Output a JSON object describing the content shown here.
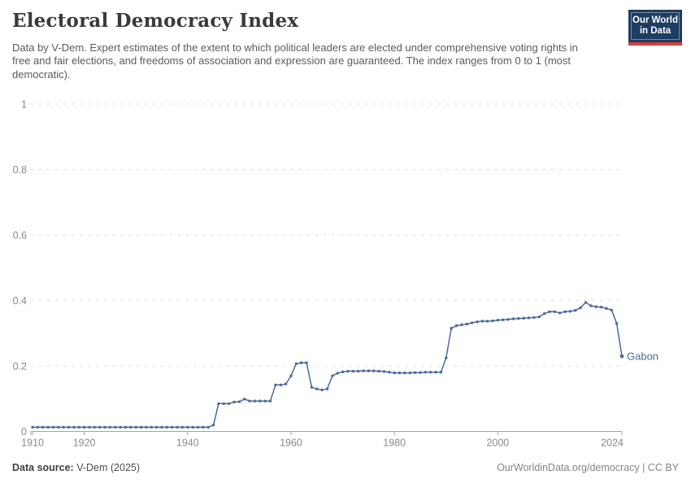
{
  "header": {
    "title": "Electoral Democracy Index",
    "subtitle": "Data by V-Dem. Expert estimates of the extent to which political leaders are elected under comprehensive voting rights in free and fair elections, and freedoms of association and expression are guaranteed. The index ranges from 0 to 1 (most democratic)."
  },
  "logo": {
    "line1": "Our World",
    "line2": "in Data",
    "bg_color": "#1d3d63",
    "bar_color": "#dc3c34"
  },
  "footer": {
    "data_source_label": "Data source:",
    "data_source_value": "V-Dem (2025)",
    "attribution": "OurWorldinData.org/democracy | CC BY"
  },
  "chart_data": {
    "type": "line",
    "title": "Electoral Democracy Index",
    "xlabel": "",
    "ylabel": "",
    "xlim": [
      1910,
      2024
    ],
    "ylim": [
      0,
      1
    ],
    "grid": true,
    "x_ticks": [
      1910,
      1920,
      1940,
      1960,
      1980,
      2000,
      2024
    ],
    "y_ticks": [
      {
        "v": 0,
        "label": "0"
      },
      {
        "v": 0.2,
        "label": "0.2"
      },
      {
        "v": 0.4,
        "label": "0.4"
      },
      {
        "v": 0.6,
        "label": "0.6"
      },
      {
        "v": 0.8,
        "label": "0.8"
      },
      {
        "v": 1,
        "label": "1"
      }
    ],
    "colors": {
      "line": "#4C6A9C",
      "grid": "#e0e0e0",
      "axis": "#a3a3a3",
      "tick_text": "#8a8a8a"
    },
    "legend": "entity label at end of line",
    "series": [
      {
        "name": "Gabon",
        "points": [
          [
            1910,
            0.013
          ],
          [
            1911,
            0.013
          ],
          [
            1912,
            0.013
          ],
          [
            1913,
            0.013
          ],
          [
            1914,
            0.013
          ],
          [
            1915,
            0.013
          ],
          [
            1916,
            0.013
          ],
          [
            1917,
            0.013
          ],
          [
            1918,
            0.013
          ],
          [
            1919,
            0.013
          ],
          [
            1920,
            0.013
          ],
          [
            1921,
            0.013
          ],
          [
            1922,
            0.013
          ],
          [
            1923,
            0.013
          ],
          [
            1924,
            0.013
          ],
          [
            1925,
            0.013
          ],
          [
            1926,
            0.013
          ],
          [
            1927,
            0.013
          ],
          [
            1928,
            0.013
          ],
          [
            1929,
            0.013
          ],
          [
            1930,
            0.013
          ],
          [
            1931,
            0.013
          ],
          [
            1932,
            0.013
          ],
          [
            1933,
            0.013
          ],
          [
            1934,
            0.013
          ],
          [
            1935,
            0.013
          ],
          [
            1936,
            0.013
          ],
          [
            1937,
            0.013
          ],
          [
            1938,
            0.013
          ],
          [
            1939,
            0.013
          ],
          [
            1940,
            0.013
          ],
          [
            1941,
            0.013
          ],
          [
            1942,
            0.013
          ],
          [
            1943,
            0.013
          ],
          [
            1944,
            0.013
          ],
          [
            1945,
            0.02
          ],
          [
            1946,
            0.085
          ],
          [
            1947,
            0.085
          ],
          [
            1948,
            0.085
          ],
          [
            1949,
            0.09
          ],
          [
            1950,
            0.091
          ],
          [
            1951,
            0.099
          ],
          [
            1952,
            0.093
          ],
          [
            1953,
            0.093
          ],
          [
            1954,
            0.093
          ],
          [
            1955,
            0.093
          ],
          [
            1956,
            0.093
          ],
          [
            1957,
            0.142
          ],
          [
            1958,
            0.142
          ],
          [
            1959,
            0.145
          ],
          [
            1960,
            0.17
          ],
          [
            1961,
            0.207
          ],
          [
            1962,
            0.21
          ],
          [
            1963,
            0.21
          ],
          [
            1964,
            0.135
          ],
          [
            1965,
            0.13
          ],
          [
            1966,
            0.127
          ],
          [
            1967,
            0.13
          ],
          [
            1968,
            0.17
          ],
          [
            1969,
            0.178
          ],
          [
            1970,
            0.182
          ],
          [
            1971,
            0.184
          ],
          [
            1972,
            0.184
          ],
          [
            1973,
            0.184
          ],
          [
            1974,
            0.185
          ],
          [
            1975,
            0.185
          ],
          [
            1976,
            0.185
          ],
          [
            1977,
            0.184
          ],
          [
            1978,
            0.183
          ],
          [
            1979,
            0.181
          ],
          [
            1980,
            0.179
          ],
          [
            1981,
            0.179
          ],
          [
            1982,
            0.179
          ],
          [
            1983,
            0.179
          ],
          [
            1984,
            0.18
          ],
          [
            1985,
            0.18
          ],
          [
            1986,
            0.181
          ],
          [
            1987,
            0.181
          ],
          [
            1988,
            0.181
          ],
          [
            1989,
            0.181
          ],
          [
            1990,
            0.225
          ],
          [
            1991,
            0.315
          ],
          [
            1992,
            0.323
          ],
          [
            1993,
            0.326
          ],
          [
            1994,
            0.328
          ],
          [
            1995,
            0.332
          ],
          [
            1996,
            0.335
          ],
          [
            1997,
            0.337
          ],
          [
            1998,
            0.337
          ],
          [
            1999,
            0.338
          ],
          [
            2000,
            0.34
          ],
          [
            2001,
            0.341
          ],
          [
            2002,
            0.342
          ],
          [
            2003,
            0.344
          ],
          [
            2004,
            0.345
          ],
          [
            2005,
            0.346
          ],
          [
            2006,
            0.347
          ],
          [
            2007,
            0.348
          ],
          [
            2008,
            0.35
          ],
          [
            2009,
            0.36
          ],
          [
            2010,
            0.366
          ],
          [
            2011,
            0.366
          ],
          [
            2012,
            0.362
          ],
          [
            2013,
            0.366
          ],
          [
            2014,
            0.367
          ],
          [
            2015,
            0.37
          ],
          [
            2016,
            0.378
          ],
          [
            2017,
            0.394
          ],
          [
            2018,
            0.384
          ],
          [
            2019,
            0.381
          ],
          [
            2020,
            0.38
          ],
          [
            2021,
            0.376
          ],
          [
            2022,
            0.371
          ],
          [
            2023,
            0.33
          ],
          [
            2024,
            0.23
          ]
        ]
      }
    ]
  }
}
